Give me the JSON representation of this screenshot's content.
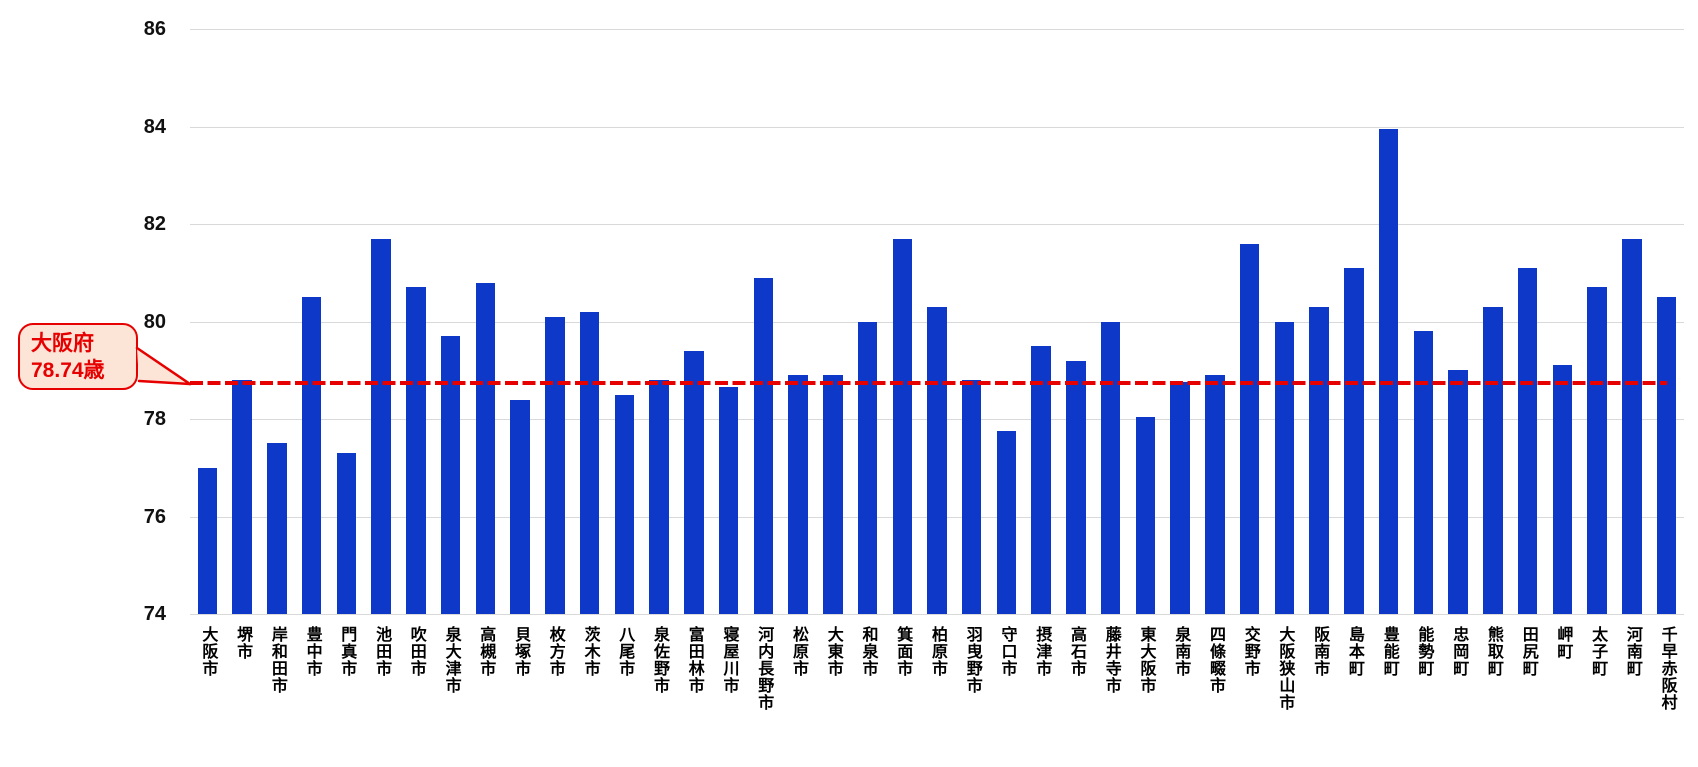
{
  "chart_data": {
    "type": "bar",
    "title": "",
    "xlabel": "",
    "ylabel": "",
    "unit": "歳",
    "ylim": [
      74,
      86
    ],
    "yticks": [
      74,
      76,
      78,
      80,
      82,
      84,
      86
    ],
    "grid": true,
    "legend_position": "none",
    "bar_color": "#0e38c8",
    "gridline_color": "#d9d9d9",
    "categories": [
      "大阪市",
      "堺市",
      "岸和田市",
      "豊中市",
      "門真市",
      "池田市",
      "吹田市",
      "泉大津市",
      "高槻市",
      "貝塚市",
      "枚方市",
      "茨木市",
      "八尾市",
      "泉佐野市",
      "富田林市",
      "寝屋川市",
      "河内長野市",
      "松原市",
      "大東市",
      "和泉市",
      "箕面市",
      "柏原市",
      "羽曳野市",
      "守口市",
      "摂津市",
      "高石市",
      "藤井寺市",
      "東大阪市",
      "泉南市",
      "四條畷市",
      "交野市",
      "大阪狭山市",
      "阪南市",
      "島本町",
      "豊能町",
      "能勢町",
      "忠岡町",
      "熊取町",
      "田尻町",
      "岬町",
      "太子町",
      "河南町",
      "千早赤阪村"
    ],
    "values": [
      77.0,
      78.8,
      77.5,
      80.5,
      77.3,
      81.7,
      80.7,
      79.7,
      80.8,
      78.4,
      80.1,
      80.2,
      78.5,
      78.8,
      79.4,
      78.65,
      80.9,
      78.9,
      78.9,
      80.0,
      81.7,
      80.3,
      78.8,
      77.75,
      79.5,
      79.2,
      80.0,
      78.05,
      78.75,
      78.9,
      81.6,
      80.0,
      80.3,
      81.1,
      83.95,
      79.8,
      79.0,
      80.3,
      81.1,
      79.1,
      80.7,
      81.7,
      80.5
    ],
    "reference_line": {
      "value": 78.74,
      "color": "#e60000",
      "style": "dashed",
      "callout": {
        "line1": "大阪府",
        "line2": "78.74歳",
        "fill": "#fce4d6",
        "border_color": "#e60000",
        "text_color": "#e60000"
      }
    }
  }
}
